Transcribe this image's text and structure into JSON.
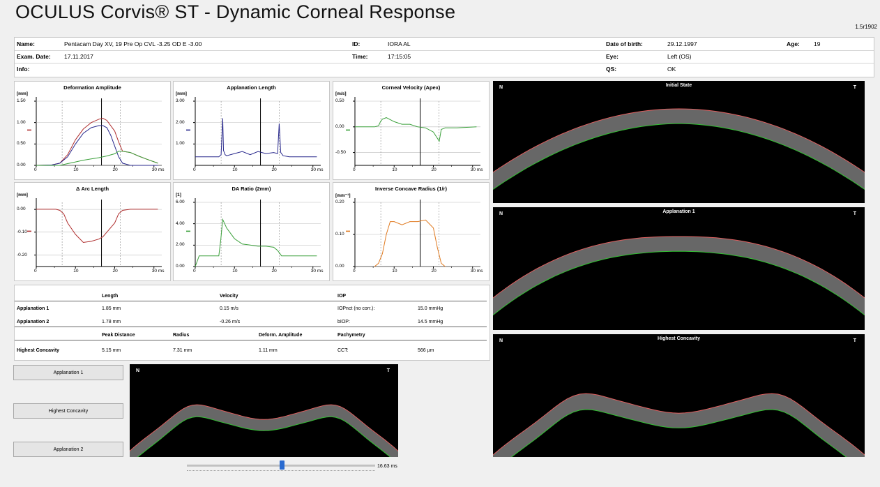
{
  "app": {
    "title": "OCULUS Corvis® ST - Dynamic Corneal Response",
    "version": "1.5r1902"
  },
  "patient": {
    "name_label": "Name:",
    "name_value": "Pentacam Day XV, 19 Pre Op CVL -3.25 OD E -3.00",
    "id_label": "ID:",
    "id_value": "IORA AL",
    "dob_label": "Date of birth:",
    "dob_value": "29.12.1997",
    "age_label": "Age:",
    "age_value": "19",
    "exam_label": "Exam. Date:",
    "exam_value": "17.11.2017",
    "time_label": "Time:",
    "time_value": "17:15:05",
    "eye_label": "Eye:",
    "eye_value": "Left (OS)",
    "info_label": "Info:",
    "info_value": "",
    "qs_label": "QS:",
    "qs_value": "OK"
  },
  "charts": [
    {
      "title": "Deformation Amplitude",
      "unit": "[mm]",
      "yticks": [
        "1.50",
        "1.00",
        "0.50",
        "0.00"
      ],
      "xticks": [
        "0",
        "10",
        "20",
        "30 ms"
      ]
    },
    {
      "title": "Applanation Length",
      "unit": "[mm]",
      "yticks": [
        "3.00",
        "2.00",
        "1.00"
      ],
      "xticks": [
        "0",
        "10",
        "20",
        "30 ms"
      ]
    },
    {
      "title": "Corneal Velocity (Apex)",
      "unit": "[m/s]",
      "yticks": [
        "0.50",
        "0.00",
        "-0.50"
      ],
      "xticks": [
        "0",
        "10",
        "20",
        "30 ms"
      ]
    },
    {
      "title": "Δ Arc Length",
      "unit": "[mm]",
      "yticks": [
        "0.00",
        "-0.10",
        "-0.20"
      ],
      "xticks": [
        "0",
        "10",
        "20",
        "30 ms"
      ]
    },
    {
      "title": "DA Ratio (2mm)",
      "unit": "[1]",
      "yticks": [
        "6.00",
        "4.00",
        "2.00",
        "0.00"
      ],
      "xticks": [
        "0",
        "10",
        "20",
        "30 ms"
      ]
    },
    {
      "title": "Inverse Concave Radius (1/r)",
      "unit": "[mm⁻¹]",
      "yticks": [
        "0.20",
        "0.10",
        "0.00"
      ],
      "xticks": [
        "0",
        "10",
        "20",
        "30 ms"
      ]
    }
  ],
  "chart_data": [
    {
      "type": "line",
      "title": "Deformation Amplitude",
      "ylabel": "[mm]",
      "xlabel": "ms",
      "xlim": [
        0,
        32
      ],
      "ylim": [
        0,
        1.5
      ],
      "series": [
        {
          "color": "#b03030",
          "x": [
            0,
            4,
            6,
            8,
            10,
            12,
            14,
            16,
            17,
            18,
            20,
            21,
            22,
            24,
            26,
            28,
            31
          ],
          "y": [
            0,
            0.01,
            0.05,
            0.25,
            0.6,
            0.85,
            1.0,
            1.08,
            1.1,
            1.05,
            0.8,
            0.55,
            0.33,
            0.3,
            0.22,
            0.15,
            0.05
          ]
        },
        {
          "color": "#28288c",
          "x": [
            0,
            4,
            6,
            8,
            10,
            12,
            14,
            16,
            17,
            18,
            19,
            20,
            21,
            22,
            24,
            28,
            31
          ],
          "y": [
            0,
            0.01,
            0.05,
            0.2,
            0.5,
            0.75,
            0.88,
            0.93,
            0.93,
            0.88,
            0.7,
            0.45,
            0.2,
            0.05,
            0,
            0,
            0
          ]
        },
        {
          "color": "#3aa03a",
          "x": [
            0,
            4,
            6,
            8,
            10,
            12,
            14,
            16,
            18,
            20,
            21,
            22,
            24,
            26,
            28,
            31
          ],
          "y": [
            0,
            0,
            0,
            0.04,
            0.08,
            0.12,
            0.15,
            0.18,
            0.22,
            0.27,
            0.33,
            0.33,
            0.3,
            0.22,
            0.15,
            0.05
          ]
        }
      ]
    },
    {
      "type": "line",
      "title": "Applanation Length",
      "ylabel": "[mm]",
      "xlabel": "ms",
      "xlim": [
        0,
        32
      ],
      "ylim": [
        0,
        3
      ],
      "series": [
        {
          "color": "#28288c",
          "x": [
            0,
            6,
            6.6,
            7,
            7.2,
            7.6,
            8,
            10,
            12,
            14,
            16,
            18,
            20,
            21,
            21.4,
            21.8,
            22.4,
            24,
            31
          ],
          "y": [
            0.4,
            0.4,
            0.5,
            2.2,
            0.7,
            0.5,
            0.45,
            0.55,
            0.65,
            0.5,
            0.65,
            0.55,
            0.6,
            0.55,
            1.95,
            0.6,
            0.45,
            0.4,
            0.4
          ]
        }
      ]
    },
    {
      "type": "line",
      "title": "Corneal Velocity (Apex)",
      "ylabel": "[m/s]",
      "xlabel": "ms",
      "xlim": [
        0,
        32
      ],
      "ylim": [
        -0.75,
        0.5
      ],
      "series": [
        {
          "color": "#3aa03a",
          "x": [
            0,
            5,
            6,
            6.5,
            7,
            8,
            10,
            12,
            14,
            16,
            18,
            20,
            21,
            21.5,
            22,
            23,
            26,
            31
          ],
          "y": [
            0,
            0,
            0.02,
            0.1,
            0.15,
            0.18,
            0.1,
            0.05,
            0.05,
            0,
            -0.02,
            -0.1,
            -0.22,
            -0.28,
            -0.05,
            -0.02,
            -0.02,
            0
          ]
        }
      ]
    },
    {
      "type": "line",
      "title": "Δ Arc Length",
      "ylabel": "[mm]",
      "xlabel": "ms",
      "xlim": [
        0,
        32
      ],
      "ylim": [
        -0.25,
        0.03
      ],
      "series": [
        {
          "color": "#b03030",
          "x": [
            0,
            5,
            6,
            7,
            8,
            10,
            12,
            14,
            16,
            17,
            18,
            20,
            21,
            22,
            24,
            28,
            31
          ],
          "y": [
            0,
            0,
            -0.005,
            -0.02,
            -0.06,
            -0.11,
            -0.145,
            -0.14,
            -0.13,
            -0.12,
            -0.1,
            -0.06,
            -0.02,
            -0.005,
            0,
            0,
            0
          ]
        }
      ]
    },
    {
      "type": "line",
      "title": "DA Ratio (2mm)",
      "ylabel": "[1]",
      "xlabel": "ms",
      "xlim": [
        0,
        32
      ],
      "ylim": [
        0,
        6
      ],
      "series": [
        {
          "color": "#3aa03a",
          "x": [
            0,
            1,
            6,
            6.5,
            7,
            8,
            10,
            12,
            14,
            16,
            17,
            18,
            20,
            21,
            22,
            24,
            31
          ],
          "y": [
            0,
            1,
            1,
            2.5,
            4.4,
            3.6,
            2.6,
            2.1,
            2,
            1.9,
            1.9,
            1.9,
            1.8,
            1.5,
            1,
            1,
            1
          ]
        }
      ]
    },
    {
      "type": "line",
      "title": "Inverse Concave Radius (1/r)",
      "ylabel": "[mm⁻¹]",
      "xlabel": "ms",
      "xlim": [
        0,
        32
      ],
      "ylim": [
        0,
        0.2
      ],
      "series": [
        {
          "color": "#e07a20",
          "x": [
            5,
            6,
            7,
            8,
            9,
            10,
            12,
            14,
            16,
            18,
            20,
            21,
            22,
            23
          ],
          "y": [
            0,
            0.01,
            0.04,
            0.1,
            0.14,
            0.14,
            0.13,
            0.14,
            0.14,
            0.145,
            0.12,
            0.06,
            0.01,
            0
          ]
        }
      ]
    }
  ],
  "table": {
    "h_length": "Length",
    "h_velocity": "Velocity",
    "h_iop": "IOP",
    "appl1_label": "Applanation 1",
    "appl1_length": "1.85 mm",
    "appl1_velocity": "0.15 m/s",
    "iopnct_label": "IOPnct (no corr.):",
    "iopnct_value": "15.0 mmHg",
    "appl2_label": "Applanation 2",
    "appl2_length": "1.78 mm",
    "appl2_velocity": "-0.26 m/s",
    "biop_label": "bIOP:",
    "biop_value": "14.5 mmHg",
    "h_peak": "Peak Distance",
    "h_radius": "Radius",
    "h_deform": "Deform. Amplitude",
    "h_pachy": "Pachymetry",
    "hc_label": "Highest Concavity",
    "hc_peak": "5.15 mm",
    "hc_radius": "7.31 mm",
    "hc_deform": "1.11 mm",
    "cct_label": "CCT:",
    "cct_value": "566 µm"
  },
  "buttons": {
    "appl1": "Applanation 1",
    "highest": "Highest Concavity",
    "appl2": "Applanation 2"
  },
  "oct": {
    "n": "N",
    "t": "T",
    "initial": "Initial State",
    "appl1": "Applanation 1",
    "highest": "Highest Concavity"
  },
  "slider": {
    "time": "16.63 ms"
  }
}
